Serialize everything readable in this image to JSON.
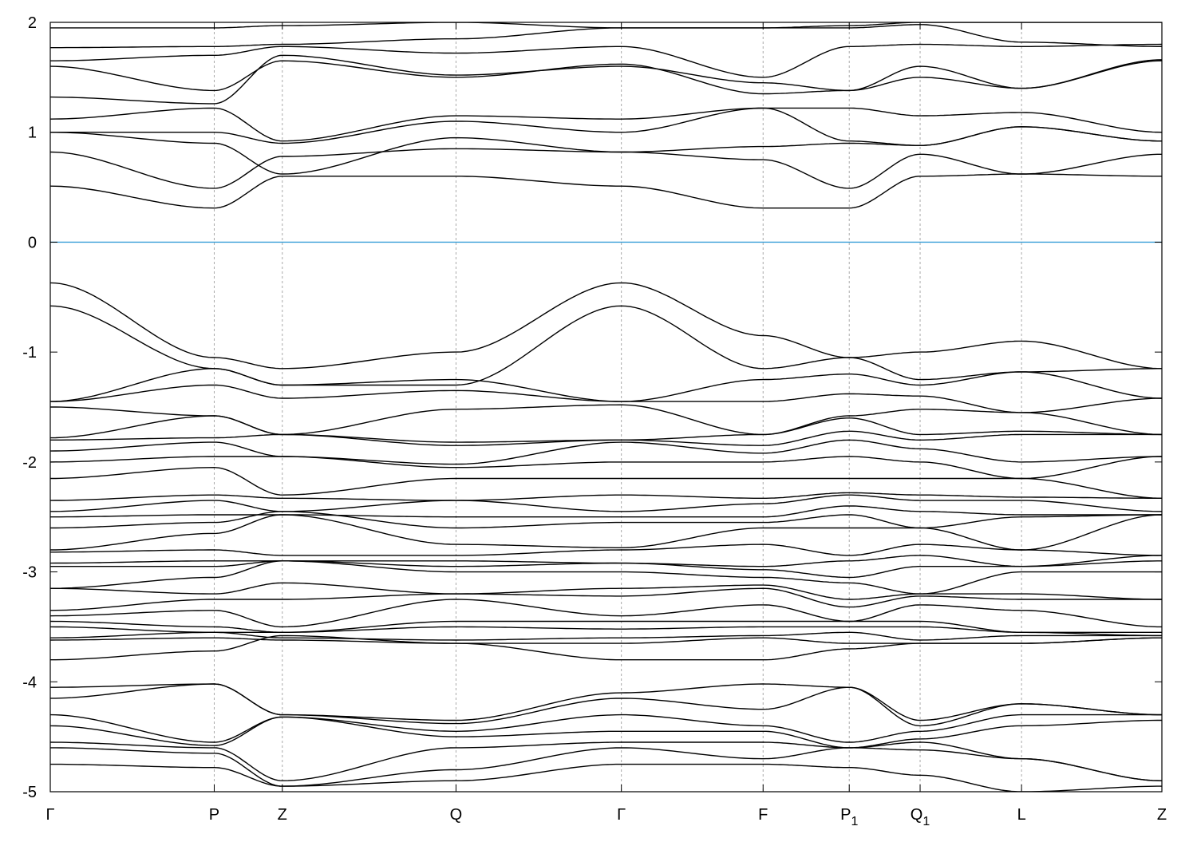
{
  "chart_data": {
    "type": "line",
    "title": "",
    "xlabel": "",
    "ylabel": "",
    "ylim": [
      -5,
      2
    ],
    "yticks": [
      "2",
      "1",
      "0",
      "-1",
      "-2",
      "-3",
      "-4",
      "-5"
    ],
    "ytick_values": [
      2,
      1,
      0,
      -1,
      -2,
      -3,
      -4,
      -5
    ],
    "kpoints": [
      {
        "label": "Γ",
        "sub": ""
      },
      {
        "label": "P",
        "sub": ""
      },
      {
        "label": "Z",
        "sub": ""
      },
      {
        "label": "Q",
        "sub": ""
      },
      {
        "label": "Γ",
        "sub": ""
      },
      {
        "label": "F",
        "sub": ""
      },
      {
        "label": "P",
        "sub": "1"
      },
      {
        "label": "Q",
        "sub": "1"
      },
      {
        "label": "L",
        "sub": ""
      },
      {
        "label": "Z",
        "sub": ""
      }
    ],
    "kpoint_positions": [
      0,
      1.18,
      1.67,
      2.92,
      4.11,
      5.13,
      5.75,
      6.26,
      6.99,
      8.0
    ],
    "fermi_level": 0,
    "fermi_color": "#3a9fd8",
    "band_color": "#000000",
    "grid": "vertical dashed at high-symmetry points",
    "bands": [
      [
        0.51,
        0.31,
        0.6,
        0.6,
        0.51,
        0.31,
        0.31,
        0.6,
        0.62,
        0.6
      ],
      [
        0.82,
        0.49,
        0.78,
        0.85,
        0.82,
        0.75,
        0.49,
        0.8,
        0.62,
        0.8
      ],
      [
        1.0,
        0.9,
        0.62,
        0.95,
        0.82,
        0.87,
        0.9,
        0.88,
        1.05,
        0.92
      ],
      [
        1.0,
        1.0,
        0.9,
        1.1,
        1.0,
        1.22,
        0.92,
        0.88,
        1.05,
        0.92
      ],
      [
        1.12,
        1.22,
        0.92,
        1.15,
        1.12,
        1.22,
        1.22,
        1.15,
        1.18,
        1.0
      ],
      [
        1.32,
        1.26,
        1.7,
        1.52,
        1.6,
        1.45,
        1.38,
        1.5,
        1.4,
        1.65
      ],
      [
        1.6,
        1.38,
        1.65,
        1.5,
        1.62,
        1.35,
        1.38,
        1.6,
        1.4,
        1.66
      ],
      [
        1.65,
        1.7,
        1.78,
        1.72,
        1.78,
        1.5,
        1.78,
        1.8,
        1.78,
        1.8
      ],
      [
        1.77,
        1.78,
        1.8,
        1.85,
        1.95,
        1.95,
        1.95,
        1.98,
        1.82,
        1.78
      ],
      [
        1.95,
        1.95,
        1.97,
        2.0,
        1.95,
        1.95,
        1.97,
        2.0,
        2.0,
        2.0
      ],
      [
        -0.37,
        -1.05,
        -1.15,
        -1.0,
        -0.37,
        -0.85,
        -1.05,
        -1.0,
        -0.9,
        -1.15
      ],
      [
        -0.58,
        -1.15,
        -1.3,
        -1.3,
        -0.58,
        -1.15,
        -1.05,
        -1.25,
        -1.18,
        -1.15
      ],
      [
        -1.45,
        -1.15,
        -1.3,
        -1.25,
        -1.45,
        -1.25,
        -1.2,
        -1.3,
        -1.18,
        -1.42
      ],
      [
        -1.45,
        -1.3,
        -1.42,
        -1.35,
        -1.45,
        -1.45,
        -1.38,
        -1.4,
        -1.55,
        -1.42
      ],
      [
        -1.5,
        -1.58,
        -1.75,
        -1.52,
        -1.48,
        -1.75,
        -1.58,
        -1.52,
        -1.55,
        -1.75
      ],
      [
        -1.78,
        -1.58,
        -1.75,
        -1.82,
        -1.8,
        -1.75,
        -1.6,
        -1.75,
        -1.72,
        -1.75
      ],
      [
        -1.8,
        -1.78,
        -1.75,
        -1.85,
        -1.8,
        -1.85,
        -1.72,
        -1.8,
        -1.75,
        -1.75
      ],
      [
        -1.9,
        -1.82,
        -1.95,
        -2.02,
        -1.82,
        -1.92,
        -1.8,
        -1.88,
        -2.0,
        -1.95
      ],
      [
        -2.0,
        -1.95,
        -1.95,
        -2.05,
        -2.0,
        -2.0,
        -1.95,
        -2.0,
        -2.15,
        -1.95
      ],
      [
        -2.15,
        -2.05,
        -2.3,
        -2.15,
        -2.15,
        -2.15,
        -2.15,
        -2.15,
        -2.15,
        -2.33
      ],
      [
        -2.35,
        -2.3,
        -2.33,
        -2.35,
        -2.3,
        -2.33,
        -2.28,
        -2.3,
        -2.32,
        -2.33
      ],
      [
        -2.45,
        -2.35,
        -2.45,
        -2.35,
        -2.45,
        -2.38,
        -2.3,
        -2.35,
        -2.35,
        -2.45
      ],
      [
        -2.5,
        -2.48,
        -2.48,
        -2.5,
        -2.5,
        -2.5,
        -2.4,
        -2.45,
        -2.48,
        -2.48
      ],
      [
        -2.6,
        -2.55,
        -2.45,
        -2.6,
        -2.55,
        -2.55,
        -2.48,
        -2.6,
        -2.5,
        -2.48
      ],
      [
        -2.8,
        -2.65,
        -2.48,
        -2.75,
        -2.78,
        -2.6,
        -2.6,
        -2.6,
        -2.8,
        -2.48
      ],
      [
        -2.82,
        -2.8,
        -2.85,
        -2.85,
        -2.8,
        -2.75,
        -2.85,
        -2.75,
        -2.8,
        -2.85
      ],
      [
        -2.92,
        -2.9,
        -2.9,
        -2.9,
        -2.92,
        -2.95,
        -2.9,
        -2.85,
        -2.95,
        -2.85
      ],
      [
        -2.95,
        -2.95,
        -2.9,
        -2.95,
        -2.92,
        -2.98,
        -3.05,
        -2.95,
        -2.95,
        -2.9
      ],
      [
        -3.15,
        -3.05,
        -2.9,
        -3.0,
        -3.0,
        -3.05,
        -3.1,
        -3.2,
        -3.0,
        -3.0
      ],
      [
        -3.15,
        -3.2,
        -3.1,
        -3.2,
        -3.15,
        -3.12,
        -3.25,
        -3.2,
        -3.2,
        -3.25
      ],
      [
        -3.35,
        -3.25,
        -3.25,
        -3.2,
        -3.22,
        -3.15,
        -3.32,
        -3.22,
        -3.25,
        -3.25
      ],
      [
        -3.4,
        -3.35,
        -3.5,
        -3.25,
        -3.4,
        -3.3,
        -3.45,
        -3.3,
        -3.35,
        -3.5
      ],
      [
        -3.45,
        -3.5,
        -3.55,
        -3.45,
        -3.45,
        -3.45,
        -3.45,
        -3.45,
        -3.55,
        -3.55
      ],
      [
        -3.5,
        -3.55,
        -3.55,
        -3.5,
        -3.52,
        -3.5,
        -3.5,
        -3.5,
        -3.55,
        -3.58
      ],
      [
        -3.6,
        -3.55,
        -3.6,
        -3.62,
        -3.6,
        -3.58,
        -3.55,
        -3.62,
        -3.58,
        -3.58
      ],
      [
        -3.62,
        -3.6,
        -3.62,
        -3.65,
        -3.65,
        -3.6,
        -3.65,
        -3.65,
        -3.65,
        -3.6
      ],
      [
        -3.8,
        -3.72,
        -3.58,
        -3.65,
        -3.8,
        -3.8,
        -3.7,
        -3.65,
        -3.65,
        -3.6
      ],
      [
        -4.05,
        -4.02,
        -4.3,
        -4.35,
        -4.1,
        -4.02,
        -4.05,
        -4.35,
        -4.2,
        -4.3
      ],
      [
        -4.15,
        -4.02,
        -4.3,
        -4.38,
        -4.15,
        -4.25,
        -4.05,
        -4.4,
        -4.2,
        -4.3
      ],
      [
        -4.3,
        -4.55,
        -4.32,
        -4.45,
        -4.3,
        -4.4,
        -4.55,
        -4.45,
        -4.3,
        -4.3
      ],
      [
        -4.4,
        -4.58,
        -4.32,
        -4.5,
        -4.45,
        -4.45,
        -4.6,
        -4.52,
        -4.4,
        -4.35
      ],
      [
        -4.55,
        -4.6,
        -4.9,
        -4.6,
        -4.55,
        -4.55,
        -4.6,
        -4.55,
        -4.7,
        -4.9
      ],
      [
        -4.6,
        -4.65,
        -4.95,
        -4.8,
        -4.6,
        -4.7,
        -4.6,
        -4.62,
        -4.7,
        -4.9
      ],
      [
        -4.75,
        -4.78,
        -4.95,
        -4.9,
        -4.75,
        -4.75,
        -4.78,
        -4.85,
        -5.0,
        -4.95
      ]
    ]
  }
}
